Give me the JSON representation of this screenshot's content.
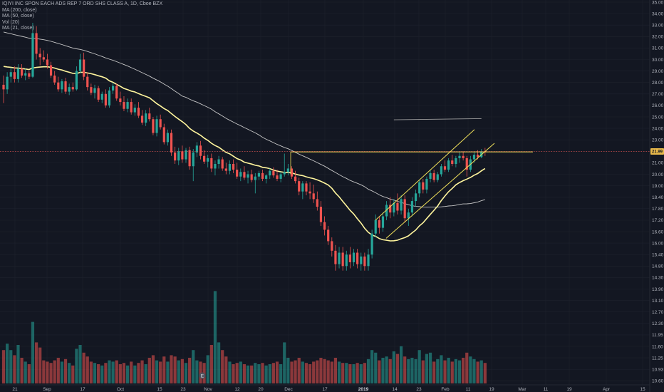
{
  "legend": {
    "title": "IQIYI INC SPON EACH ADS REP 7 ORD SHS CLASS A, 1D, Cboe BZX",
    "ma200": "MA (200, close)",
    "ma50": "MA (50, close)",
    "vol": "Vol (20)",
    "ma21": "MA (21, close)"
  },
  "price_badge": "21.99",
  "earnings_marker": "E",
  "colors": {
    "background": "#131722",
    "up": "#26a69a",
    "down": "#ef5350",
    "ma21": "#fff59d",
    "ma50": "#c7c7c7",
    "ma200": "#9e9e9e",
    "trendline": "#f0e05a",
    "price_line": "#ef5350",
    "badge": "#e8b84a"
  },
  "chart_data": {
    "type": "candlestick",
    "x_ticks": [
      "21",
      "Sep",
      "17",
      "Oct",
      "15",
      "23",
      "Nov",
      "12",
      "20",
      "Dec",
      "17",
      "2019",
      "14",
      "23",
      "Feb",
      "11",
      "19",
      "Mar",
      "11",
      "19",
      "Apr",
      "15"
    ],
    "y_ticks": [
      "35.00",
      "34.00",
      "33.00",
      "32.00",
      "31.00",
      "30.00",
      "29.00",
      "28.00",
      "27.00",
      "26.00",
      "25.00",
      "24.00",
      "23.00",
      "22.00",
      "21.00",
      "20.00",
      "19.00",
      "18.40",
      "17.80",
      "17.20",
      "16.60",
      "16.00",
      "15.40",
      "14.80",
      "14.30",
      "13.90",
      "13.10",
      "12.70",
      "12.30",
      "11.95",
      "11.60",
      "11.25",
      "10.93",
      "10.60"
    ],
    "ylim": [
      10.6,
      35.0
    ],
    "last_price": 21.99,
    "horizontal_level": 21.95,
    "candles": [
      {
        "o": 27.8,
        "h": 28.6,
        "l": 26.2,
        "c": 27.4,
        "v": 1.3
      },
      {
        "o": 27.4,
        "h": 28.9,
        "l": 27.0,
        "c": 28.5,
        "v": 1.55
      },
      {
        "o": 28.5,
        "h": 29.3,
        "l": 28.0,
        "c": 28.9,
        "v": 1.3
      },
      {
        "o": 28.9,
        "h": 29.4,
        "l": 28.0,
        "c": 28.3,
        "v": 1.1
      },
      {
        "o": 28.3,
        "h": 29.6,
        "l": 28.0,
        "c": 29.2,
        "v": 1.5
      },
      {
        "o": 29.2,
        "h": 29.6,
        "l": 28.4,
        "c": 28.6,
        "v": 1.0
      },
      {
        "o": 28.6,
        "h": 29.2,
        "l": 28.2,
        "c": 28.8,
        "v": 0.85
      },
      {
        "o": 28.8,
        "h": 29.0,
        "l": 28.3,
        "c": 28.5,
        "v": 0.75
      },
      {
        "o": 28.5,
        "h": 33.2,
        "l": 28.4,
        "c": 32.3,
        "v": 2.4
      },
      {
        "o": 32.3,
        "h": 32.9,
        "l": 30.0,
        "c": 30.5,
        "v": 1.6
      },
      {
        "o": 30.5,
        "h": 31.0,
        "l": 29.5,
        "c": 30.2,
        "v": 1.4
      },
      {
        "o": 30.2,
        "h": 30.8,
        "l": 29.8,
        "c": 30.0,
        "v": 0.9
      },
      {
        "o": 30.0,
        "h": 30.5,
        "l": 29.2,
        "c": 29.5,
        "v": 0.85
      },
      {
        "o": 29.5,
        "h": 29.8,
        "l": 28.4,
        "c": 28.6,
        "v": 0.8
      },
      {
        "o": 28.6,
        "h": 29.0,
        "l": 27.8,
        "c": 28.0,
        "v": 0.9
      },
      {
        "o": 28.0,
        "h": 28.5,
        "l": 27.2,
        "c": 27.4,
        "v": 1.0
      },
      {
        "o": 27.4,
        "h": 28.3,
        "l": 27.1,
        "c": 28.1,
        "v": 0.85
      },
      {
        "o": 28.1,
        "h": 28.4,
        "l": 27.0,
        "c": 27.2,
        "v": 0.95
      },
      {
        "o": 27.2,
        "h": 27.9,
        "l": 26.9,
        "c": 27.6,
        "v": 0.8
      },
      {
        "o": 27.6,
        "h": 28.0,
        "l": 27.2,
        "c": 27.4,
        "v": 0.7
      },
      {
        "o": 27.4,
        "h": 29.4,
        "l": 27.3,
        "c": 29.0,
        "v": 1.35
      },
      {
        "o": 29.0,
        "h": 30.5,
        "l": 28.8,
        "c": 30.0,
        "v": 1.5
      },
      {
        "o": 30.0,
        "h": 30.6,
        "l": 28.2,
        "c": 28.5,
        "v": 1.2
      },
      {
        "o": 28.5,
        "h": 28.9,
        "l": 27.3,
        "c": 27.6,
        "v": 1.05
      },
      {
        "o": 27.6,
        "h": 27.9,
        "l": 26.9,
        "c": 27.1,
        "v": 0.85
      },
      {
        "o": 27.1,
        "h": 27.8,
        "l": 26.6,
        "c": 27.5,
        "v": 0.8
      },
      {
        "o": 27.5,
        "h": 27.7,
        "l": 26.3,
        "c": 26.5,
        "v": 0.75
      },
      {
        "o": 26.5,
        "h": 27.2,
        "l": 26.2,
        "c": 27.0,
        "v": 0.7
      },
      {
        "o": 27.0,
        "h": 27.4,
        "l": 25.8,
        "c": 26.0,
        "v": 0.8
      },
      {
        "o": 26.0,
        "h": 27.6,
        "l": 25.8,
        "c": 27.3,
        "v": 0.9
      },
      {
        "o": 27.3,
        "h": 28.0,
        "l": 27.0,
        "c": 27.7,
        "v": 0.85
      },
      {
        "o": 27.7,
        "h": 27.9,
        "l": 26.4,
        "c": 26.6,
        "v": 0.9
      },
      {
        "o": 26.6,
        "h": 27.2,
        "l": 26.0,
        "c": 26.3,
        "v": 0.75
      },
      {
        "o": 26.3,
        "h": 26.8,
        "l": 25.5,
        "c": 25.7,
        "v": 0.8
      },
      {
        "o": 25.7,
        "h": 26.6,
        "l": 25.4,
        "c": 26.3,
        "v": 0.7
      },
      {
        "o": 26.3,
        "h": 26.6,
        "l": 25.2,
        "c": 25.4,
        "v": 0.85
      },
      {
        "o": 25.4,
        "h": 26.1,
        "l": 25.1,
        "c": 25.8,
        "v": 0.7
      },
      {
        "o": 25.8,
        "h": 26.3,
        "l": 24.9,
        "c": 25.1,
        "v": 0.8
      },
      {
        "o": 25.1,
        "h": 25.6,
        "l": 24.3,
        "c": 24.5,
        "v": 0.9
      },
      {
        "o": 24.5,
        "h": 25.6,
        "l": 24.2,
        "c": 25.3,
        "v": 0.75
      },
      {
        "o": 25.3,
        "h": 25.8,
        "l": 24.6,
        "c": 24.8,
        "v": 1.0
      },
      {
        "o": 24.8,
        "h": 25.0,
        "l": 23.4,
        "c": 23.6,
        "v": 1.1
      },
      {
        "o": 23.6,
        "h": 25.1,
        "l": 23.3,
        "c": 24.8,
        "v": 0.9
      },
      {
        "o": 24.8,
        "h": 25.2,
        "l": 23.9,
        "c": 24.1,
        "v": 0.85
      },
      {
        "o": 24.1,
        "h": 24.4,
        "l": 22.6,
        "c": 22.8,
        "v": 1.05
      },
      {
        "o": 22.8,
        "h": 23.9,
        "l": 22.5,
        "c": 23.6,
        "v": 0.85
      },
      {
        "o": 23.6,
        "h": 23.9,
        "l": 21.6,
        "c": 21.9,
        "v": 1.1
      },
      {
        "o": 21.9,
        "h": 22.4,
        "l": 20.9,
        "c": 21.2,
        "v": 1.05
      },
      {
        "o": 21.2,
        "h": 22.3,
        "l": 20.8,
        "c": 22.0,
        "v": 0.9
      },
      {
        "o": 22.0,
        "h": 22.5,
        "l": 21.0,
        "c": 21.3,
        "v": 0.95
      },
      {
        "o": 21.3,
        "h": 22.3,
        "l": 21.0,
        "c": 22.1,
        "v": 0.8
      },
      {
        "o": 22.1,
        "h": 22.4,
        "l": 20.4,
        "c": 20.7,
        "v": 1.0
      },
      {
        "o": 20.7,
        "h": 22.2,
        "l": 19.4,
        "c": 21.9,
        "v": 1.3
      },
      {
        "o": 21.9,
        "h": 22.8,
        "l": 21.5,
        "c": 22.5,
        "v": 0.9
      },
      {
        "o": 22.5,
        "h": 22.9,
        "l": 21.3,
        "c": 21.6,
        "v": 0.85
      },
      {
        "o": 21.6,
        "h": 22.1,
        "l": 20.9,
        "c": 21.1,
        "v": 0.8
      },
      {
        "o": 21.1,
        "h": 21.7,
        "l": 20.6,
        "c": 21.4,
        "v": 1.1
      },
      {
        "o": 21.4,
        "h": 21.8,
        "l": 20.2,
        "c": 20.5,
        "v": 1.5
      },
      {
        "o": 20.5,
        "h": 21.2,
        "l": 19.9,
        "c": 20.9,
        "v": 3.6
      },
      {
        "o": 20.9,
        "h": 21.6,
        "l": 20.5,
        "c": 21.3,
        "v": 1.6
      },
      {
        "o": 21.3,
        "h": 21.5,
        "l": 20.3,
        "c": 20.5,
        "v": 1.3
      },
      {
        "o": 20.5,
        "h": 21.0,
        "l": 20.0,
        "c": 20.3,
        "v": 1.05
      },
      {
        "o": 20.3,
        "h": 21.2,
        "l": 20.0,
        "c": 20.9,
        "v": 0.85
      },
      {
        "o": 20.9,
        "h": 21.3,
        "l": 20.1,
        "c": 20.4,
        "v": 0.75
      },
      {
        "o": 20.4,
        "h": 21.0,
        "l": 19.6,
        "c": 19.8,
        "v": 0.8
      },
      {
        "o": 19.8,
        "h": 20.5,
        "l": 19.4,
        "c": 20.2,
        "v": 0.85
      },
      {
        "o": 20.2,
        "h": 20.7,
        "l": 19.5,
        "c": 19.7,
        "v": 0.75
      },
      {
        "o": 19.7,
        "h": 20.3,
        "l": 19.2,
        "c": 20.0,
        "v": 0.7
      },
      {
        "o": 20.0,
        "h": 20.4,
        "l": 19.3,
        "c": 19.5,
        "v": 0.7
      },
      {
        "o": 19.5,
        "h": 20.1,
        "l": 18.6,
        "c": 19.8,
        "v": 0.8
      },
      {
        "o": 19.8,
        "h": 20.3,
        "l": 19.5,
        "c": 20.1,
        "v": 0.75
      },
      {
        "o": 20.1,
        "h": 20.4,
        "l": 19.4,
        "c": 19.6,
        "v": 0.8
      },
      {
        "o": 19.6,
        "h": 20.0,
        "l": 19.2,
        "c": 19.9,
        "v": 0.7
      },
      {
        "o": 19.9,
        "h": 20.5,
        "l": 19.6,
        "c": 20.3,
        "v": 0.75
      },
      {
        "o": 20.3,
        "h": 20.6,
        "l": 19.7,
        "c": 19.9,
        "v": 0.8
      },
      {
        "o": 19.9,
        "h": 20.4,
        "l": 19.4,
        "c": 19.6,
        "v": 0.85
      },
      {
        "o": 19.6,
        "h": 20.2,
        "l": 19.3,
        "c": 20.0,
        "v": 0.75
      },
      {
        "o": 20.0,
        "h": 21.8,
        "l": 19.8,
        "c": 20.2,
        "v": 1.6
      },
      {
        "o": 20.2,
        "h": 20.9,
        "l": 19.9,
        "c": 20.5,
        "v": 1.0
      },
      {
        "o": 20.5,
        "h": 20.7,
        "l": 19.6,
        "c": 19.8,
        "v": 0.85
      },
      {
        "o": 19.8,
        "h": 20.3,
        "l": 19.2,
        "c": 19.4,
        "v": 0.9
      },
      {
        "o": 19.4,
        "h": 19.7,
        "l": 18.5,
        "c": 18.7,
        "v": 1.0
      },
      {
        "o": 18.7,
        "h": 19.4,
        "l": 18.3,
        "c": 19.2,
        "v": 0.85
      },
      {
        "o": 19.2,
        "h": 19.4,
        "l": 18.5,
        "c": 18.7,
        "v": 0.8
      },
      {
        "o": 18.7,
        "h": 19.3,
        "l": 18.3,
        "c": 18.6,
        "v": 0.75
      },
      {
        "o": 18.6,
        "h": 19.1,
        "l": 18.1,
        "c": 18.3,
        "v": 0.85
      },
      {
        "o": 18.3,
        "h": 18.7,
        "l": 17.7,
        "c": 17.9,
        "v": 0.9
      },
      {
        "o": 17.9,
        "h": 18.2,
        "l": 16.9,
        "c": 17.1,
        "v": 1.0
      },
      {
        "o": 17.1,
        "h": 17.4,
        "l": 16.4,
        "c": 16.7,
        "v": 0.95
      },
      {
        "o": 16.7,
        "h": 16.9,
        "l": 15.9,
        "c": 16.1,
        "v": 0.9
      },
      {
        "o": 16.1,
        "h": 16.3,
        "l": 15.3,
        "c": 15.6,
        "v": 0.85
      },
      {
        "o": 15.6,
        "h": 15.9,
        "l": 14.6,
        "c": 14.9,
        "v": 1.0
      },
      {
        "o": 14.9,
        "h": 15.8,
        "l": 14.7,
        "c": 15.5,
        "v": 0.85
      },
      {
        "o": 15.5,
        "h": 15.8,
        "l": 14.6,
        "c": 14.8,
        "v": 0.8
      },
      {
        "o": 14.8,
        "h": 15.6,
        "l": 14.6,
        "c": 15.4,
        "v": 0.8
      },
      {
        "o": 15.4,
        "h": 15.8,
        "l": 14.7,
        "c": 15.0,
        "v": 0.75
      },
      {
        "o": 15.0,
        "h": 15.7,
        "l": 14.8,
        "c": 15.5,
        "v": 0.75
      },
      {
        "o": 15.5,
        "h": 15.7,
        "l": 14.7,
        "c": 14.9,
        "v": 0.8
      },
      {
        "o": 14.9,
        "h": 15.5,
        "l": 14.6,
        "c": 15.3,
        "v": 0.75
      },
      {
        "o": 15.3,
        "h": 15.5,
        "l": 14.6,
        "c": 14.8,
        "v": 0.8
      },
      {
        "o": 14.8,
        "h": 15.7,
        "l": 14.6,
        "c": 15.4,
        "v": 0.95
      },
      {
        "o": 15.4,
        "h": 16.7,
        "l": 15.2,
        "c": 16.5,
        "v": 1.3
      },
      {
        "o": 16.5,
        "h": 17.5,
        "l": 16.3,
        "c": 17.2,
        "v": 1.2
      },
      {
        "o": 17.2,
        "h": 17.4,
        "l": 16.5,
        "c": 16.8,
        "v": 0.9
      },
      {
        "o": 16.8,
        "h": 17.6,
        "l": 16.6,
        "c": 17.4,
        "v": 1.0
      },
      {
        "o": 17.4,
        "h": 18.2,
        "l": 17.2,
        "c": 18.0,
        "v": 1.05
      },
      {
        "o": 18.0,
        "h": 18.4,
        "l": 17.3,
        "c": 17.6,
        "v": 0.95
      },
      {
        "o": 17.6,
        "h": 18.3,
        "l": 17.4,
        "c": 18.1,
        "v": 1.25
      },
      {
        "o": 18.1,
        "h": 18.6,
        "l": 17.5,
        "c": 17.7,
        "v": 1.15
      },
      {
        "o": 17.7,
        "h": 18.5,
        "l": 17.5,
        "c": 18.3,
        "v": 1.45
      },
      {
        "o": 18.3,
        "h": 18.5,
        "l": 17.1,
        "c": 17.3,
        "v": 1.05
      },
      {
        "o": 17.3,
        "h": 17.8,
        "l": 16.9,
        "c": 17.6,
        "v": 0.95
      },
      {
        "o": 17.6,
        "h": 18.4,
        "l": 17.4,
        "c": 18.2,
        "v": 1.0
      },
      {
        "o": 18.2,
        "h": 18.8,
        "l": 17.9,
        "c": 18.6,
        "v": 0.95
      },
      {
        "o": 18.6,
        "h": 19.5,
        "l": 18.4,
        "c": 19.3,
        "v": 1.3
      },
      {
        "o": 19.3,
        "h": 19.6,
        "l": 18.6,
        "c": 18.8,
        "v": 0.9
      },
      {
        "o": 18.8,
        "h": 19.8,
        "l": 18.6,
        "c": 19.6,
        "v": 1.15
      },
      {
        "o": 19.6,
        "h": 20.4,
        "l": 19.3,
        "c": 20.1,
        "v": 1.2
      },
      {
        "o": 20.1,
        "h": 20.4,
        "l": 19.3,
        "c": 19.5,
        "v": 0.85
      },
      {
        "o": 19.5,
        "h": 20.2,
        "l": 19.3,
        "c": 20.0,
        "v": 0.95
      },
      {
        "o": 20.0,
        "h": 20.9,
        "l": 19.8,
        "c": 20.7,
        "v": 1.1
      },
      {
        "o": 20.7,
        "h": 21.2,
        "l": 20.2,
        "c": 20.4,
        "v": 0.9
      },
      {
        "o": 20.4,
        "h": 21.4,
        "l": 20.2,
        "c": 21.2,
        "v": 1.0
      },
      {
        "o": 21.2,
        "h": 21.7,
        "l": 20.7,
        "c": 20.9,
        "v": 0.85
      },
      {
        "o": 20.9,
        "h": 21.6,
        "l": 20.6,
        "c": 21.4,
        "v": 0.95
      },
      {
        "o": 21.4,
        "h": 21.9,
        "l": 21.0,
        "c": 21.6,
        "v": 0.9
      },
      {
        "o": 21.6,
        "h": 22.0,
        "l": 21.2,
        "c": 21.4,
        "v": 1.0
      },
      {
        "o": 21.4,
        "h": 21.6,
        "l": 19.8,
        "c": 20.4,
        "v": 1.2
      },
      {
        "o": 20.4,
        "h": 21.6,
        "l": 20.2,
        "c": 21.3,
        "v": 1.05
      },
      {
        "o": 21.3,
        "h": 21.9,
        "l": 21.0,
        "c": 21.7,
        "v": 0.95
      },
      {
        "o": 21.7,
        "h": 22.1,
        "l": 21.3,
        "c": 21.5,
        "v": 0.85
      },
      {
        "o": 21.5,
        "h": 22.2,
        "l": 21.4,
        "c": 22.0,
        "v": 0.9
      },
      {
        "o": 22.0,
        "h": 22.3,
        "l": 21.6,
        "c": 21.99,
        "v": 0.8
      }
    ]
  }
}
